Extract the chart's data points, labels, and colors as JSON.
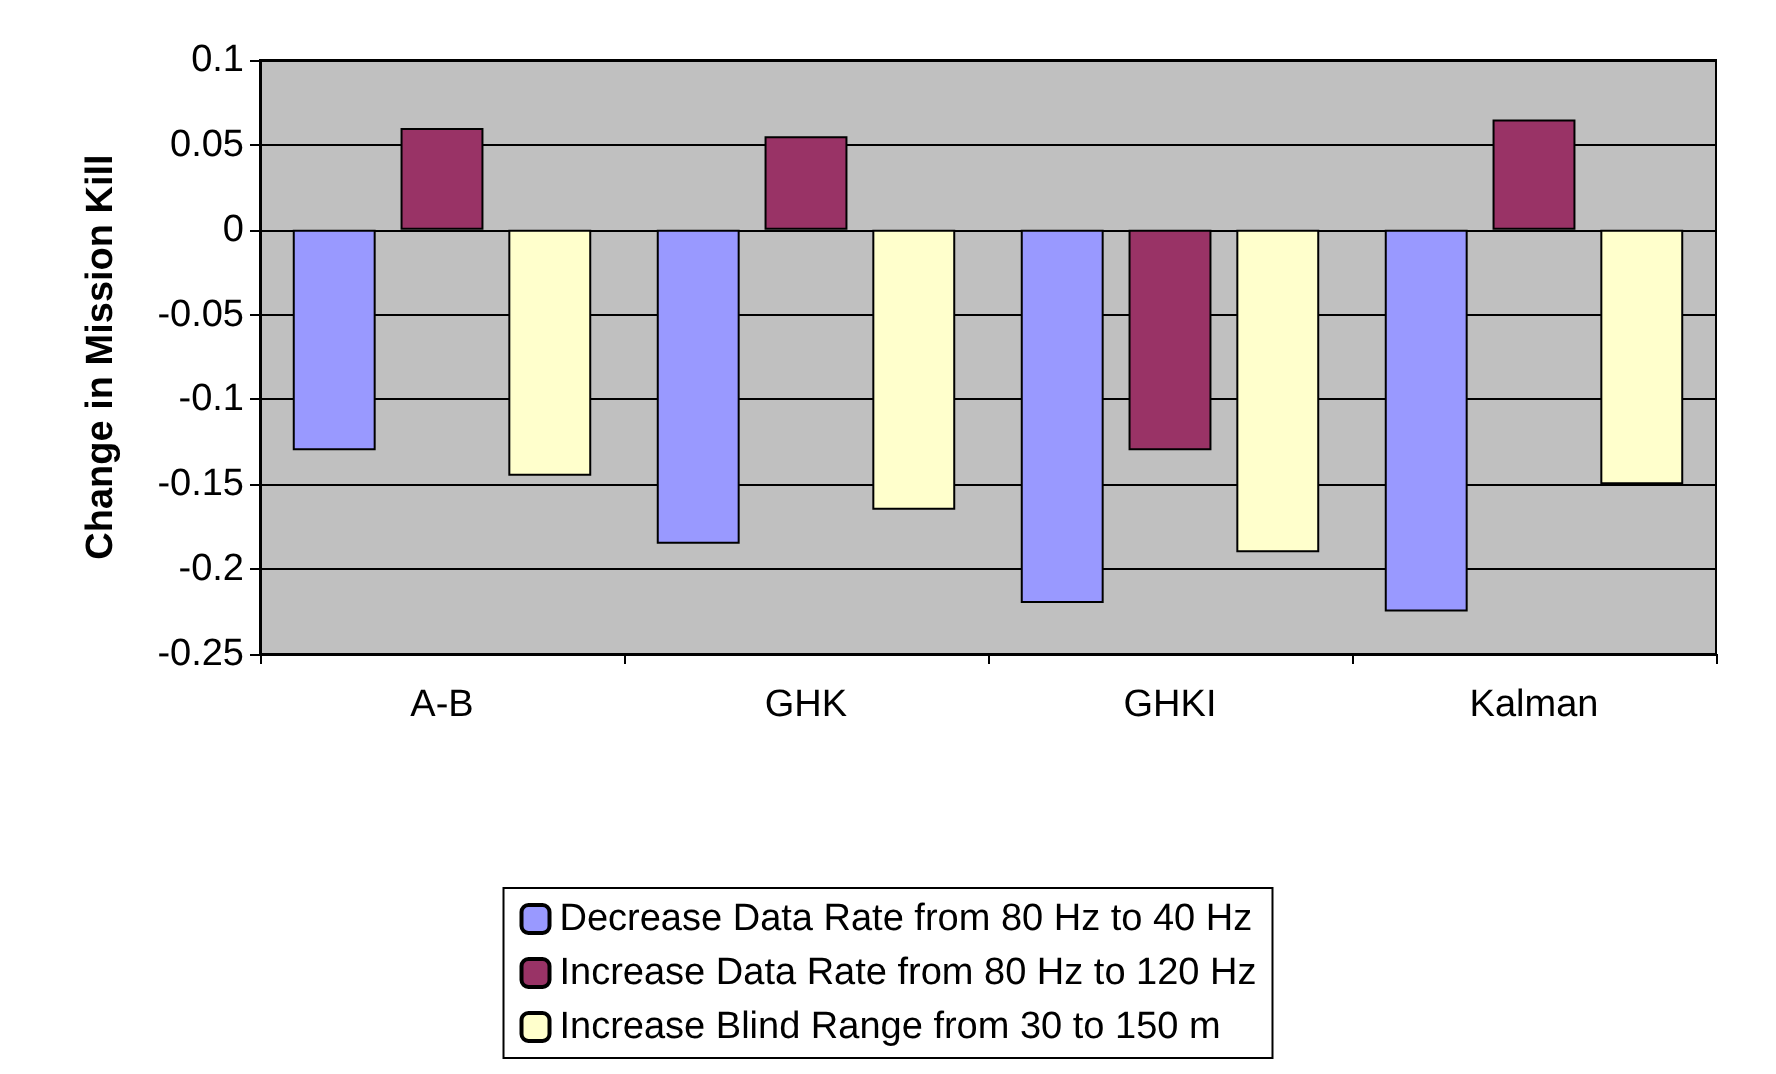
{
  "chart_data": {
    "type": "bar",
    "ylabel": "Change in Mission Kill",
    "categories": [
      "A-B",
      "GHK",
      "GHKI",
      "Kalman"
    ],
    "series": [
      {
        "name": "Decrease Data Rate from 80 Hz to 40 Hz",
        "color": "#9999ff",
        "values": [
          -0.13,
          -0.185,
          -0.22,
          -0.225
        ]
      },
      {
        "name": "Increase Data Rate from 80 Hz to 120 Hz",
        "color": "#993366",
        "values": [
          0.06,
          0.055,
          -0.13,
          0.065
        ]
      },
      {
        "name": "Increase Blind Range from 30 to 150 m",
        "color": "#ffffcc",
        "values": [
          -0.145,
          -0.165,
          -0.19,
          -0.15
        ]
      }
    ],
    "ylim": [
      -0.25,
      0.1
    ],
    "yticks": [
      -0.25,
      -0.2,
      -0.15,
      -0.1,
      -0.05,
      0,
      0.05,
      0.1
    ],
    "grid": "y",
    "legend": "bottom"
  }
}
